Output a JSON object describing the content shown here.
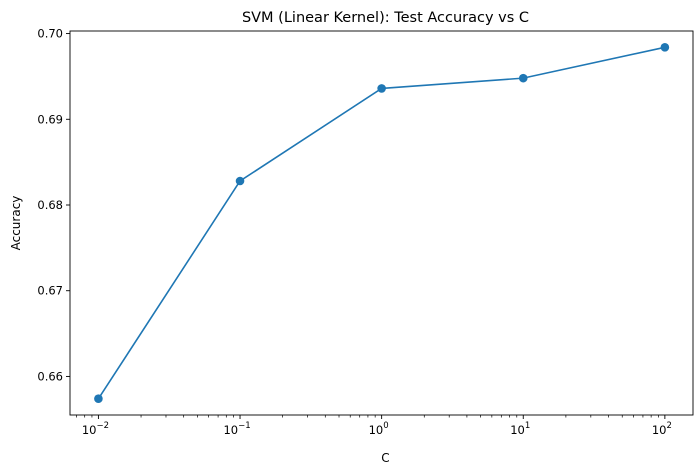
{
  "chart_data": {
    "type": "line",
    "title": "SVM (Linear Kernel): Test Accuracy vs C",
    "xlabel": "C",
    "ylabel": "Accuracy",
    "xscale": "log",
    "xlim": [
      0.0063,
      158
    ],
    "ylim": [
      0.6555,
      0.7003
    ],
    "x_ticks": [
      {
        "value": 0.01,
        "base": "10",
        "exp": "−2"
      },
      {
        "value": 0.1,
        "base": "10",
        "exp": "−1"
      },
      {
        "value": 1,
        "base": "10",
        "exp": "0"
      },
      {
        "value": 10,
        "base": "10",
        "exp": "1"
      },
      {
        "value": 100,
        "base": "10",
        "exp": "2"
      }
    ],
    "y_ticks": [
      {
        "value": 0.66,
        "label": "0.66"
      },
      {
        "value": 0.67,
        "label": "0.67"
      },
      {
        "value": 0.68,
        "label": "0.68"
      },
      {
        "value": 0.69,
        "label": "0.69"
      },
      {
        "value": 0.7,
        "label": "0.70"
      }
    ],
    "grid": false,
    "series": [
      {
        "color": "#1f77b4",
        "marker": "circle",
        "x": [
          0.01,
          0.1,
          1,
          10,
          100
        ],
        "y": [
          0.6574,
          0.6828,
          0.6936,
          0.6948,
          0.6984
        ]
      }
    ]
  }
}
